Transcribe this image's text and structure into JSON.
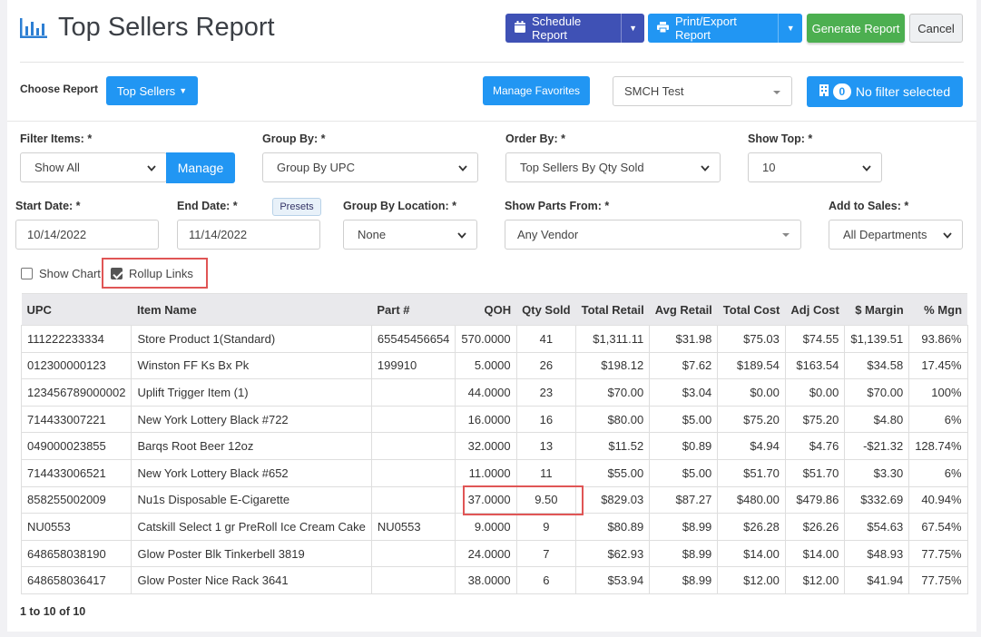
{
  "header": {
    "title": "Top Sellers Report",
    "schedule_label": "Schedule Report",
    "print_label": "Print/Export Report",
    "generate_label": "Generate Report",
    "cancel_label": "Cancel"
  },
  "toolbar": {
    "choose_report_label": "Choose Report",
    "report_dropdown_label": "Top Sellers",
    "manage_favorites_label": "Manage Favorites",
    "store_select_value": "SMCH Test",
    "filter_count": "0",
    "filter_label": "No filter selected"
  },
  "filters": {
    "filter_items_label": "Filter Items: *",
    "filter_items_value": "Show All",
    "manage_label": "Manage",
    "group_by_label": "Group By: *",
    "group_by_value": "Group By UPC",
    "order_by_label": "Order By: *",
    "order_by_value": "Top Sellers By Qty Sold",
    "show_top_label": "Show Top: *",
    "show_top_value": "10",
    "start_date_label": "Start Date: *",
    "start_date_value": "10/14/2022",
    "end_date_label": "End Date: *",
    "end_date_value": "11/14/2022",
    "presets_label": "Presets",
    "group_location_label": "Group By Location: *",
    "group_location_value": "None",
    "show_parts_label": "Show Parts From: *",
    "show_parts_value": "Any Vendor",
    "add_sales_label": "Add to Sales: *",
    "add_sales_value": "All Departments",
    "show_chart_label": "Show Chart",
    "rollup_links_label": "Rollup Links"
  },
  "table": {
    "columns": [
      "UPC",
      "Item Name",
      "Part #",
      "QOH",
      "Qty Sold",
      "Total Retail",
      "Avg Retail",
      "Total Cost",
      "Adj Cost",
      "$ Margin",
      "% Mgn"
    ],
    "rows": [
      [
        "111222233334",
        "Store Product 1(Standard)",
        "65545456654",
        "570.0000",
        "41",
        "$1,311.11",
        "$31.98",
        "$75.03",
        "$74.55",
        "$1,139.51",
        "93.86%"
      ],
      [
        "012300000123",
        "Winston FF Ks Bx Pk",
        "199910",
        "5.0000",
        "26",
        "$198.12",
        "$7.62",
        "$189.54",
        "$163.54",
        "$34.58",
        "17.45%"
      ],
      [
        "123456789000002",
        "Uplift Trigger Item (1)",
        "",
        "44.0000",
        "23",
        "$70.00",
        "$3.04",
        "$0.00",
        "$0.00",
        "$70.00",
        "100%"
      ],
      [
        "714433007221",
        "New York Lottery Black #722",
        "",
        "16.0000",
        "16",
        "$80.00",
        "$5.00",
        "$75.20",
        "$75.20",
        "$4.80",
        "6%"
      ],
      [
        "049000023855",
        "Barqs Root Beer 12oz",
        "",
        "32.0000",
        "13",
        "$11.52",
        "$0.89",
        "$4.94",
        "$4.76",
        "-$21.32",
        "128.74%"
      ],
      [
        "714433006521",
        "New York Lottery Black #652",
        "",
        "11.0000",
        "11",
        "$55.00",
        "$5.00",
        "$51.70",
        "$51.70",
        "$3.30",
        "6%"
      ],
      [
        "858255002009",
        "Nu1s Disposable E-Cigarette",
        "",
        "37.0000",
        "9.50",
        "$829.03",
        "$87.27",
        "$480.00",
        "$479.86",
        "$332.69",
        "40.94%"
      ],
      [
        "NU0553",
        "Catskill Select 1 gr PreRoll Ice Cream Cake",
        "NU0553",
        "9.0000",
        "9",
        "$80.89",
        "$8.99",
        "$26.28",
        "$26.26",
        "$54.63",
        "67.54%"
      ],
      [
        "648658038190",
        "Glow Poster Blk Tinkerbell 3819",
        "",
        "24.0000",
        "7",
        "$62.93",
        "$8.99",
        "$14.00",
        "$14.00",
        "$48.93",
        "77.75%"
      ],
      [
        "648658036417",
        "Glow Poster Nice Rack 3641",
        "",
        "38.0000",
        "6",
        "$53.94",
        "$8.99",
        "$12.00",
        "$12.00",
        "$41.94",
        "77.75%"
      ]
    ]
  },
  "pagination": {
    "text": "1 to 10 of 10"
  },
  "colors": {
    "primary": "#2196f3",
    "schedule": "#3f51b5",
    "generate": "#4caf50",
    "highlight": "#e05555"
  },
  "icons": {
    "title": "bar-chart-icon",
    "schedule": "calendar-icon",
    "print": "print-icon",
    "filter": "building-icon"
  }
}
